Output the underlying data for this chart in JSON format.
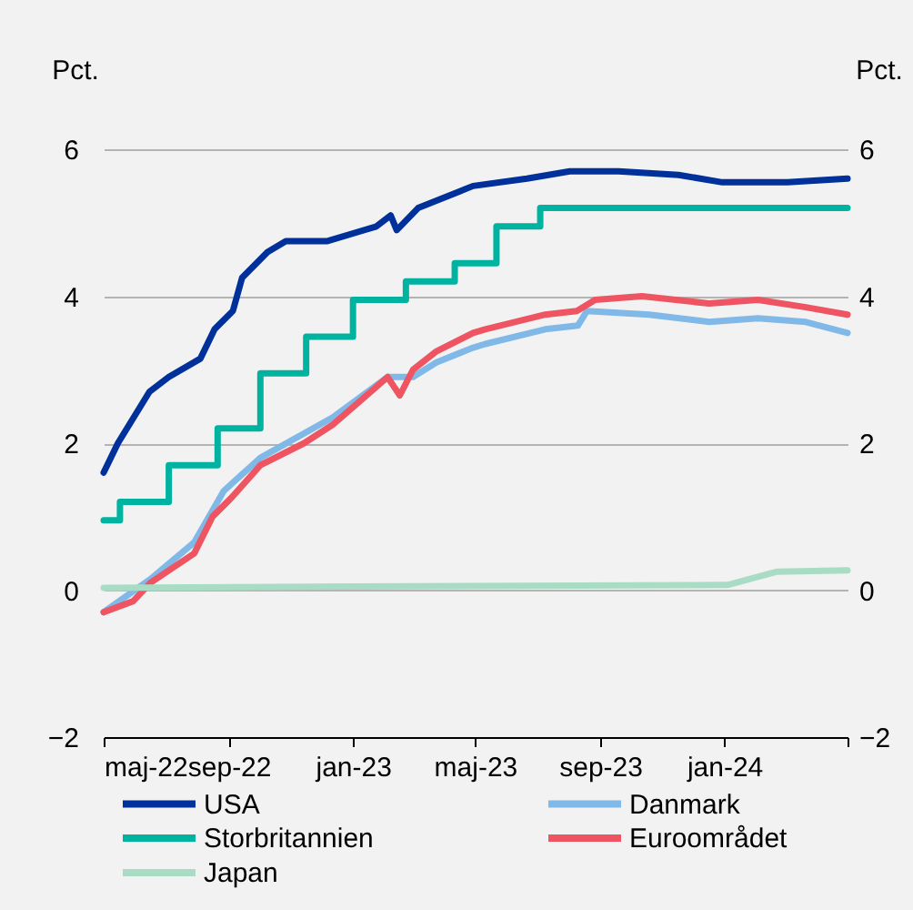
{
  "chart_data": {
    "type": "line",
    "ylabel": "Pct.",
    "y2label": "Pct.",
    "xlim": [
      "2022-05-01",
      "2024-05-01"
    ],
    "xticks": [
      {
        "value": "2022-05-01",
        "label": "maj-22"
      },
      {
        "value": "2022-09-01",
        "label": "sep-22"
      },
      {
        "value": "2023-01-01",
        "label": "jan-23"
      },
      {
        "value": "2023-05-01",
        "label": "maj-23"
      },
      {
        "value": "2023-09-01",
        "label": "sep-23"
      },
      {
        "value": "2024-01-01",
        "label": "jan-24"
      },
      {
        "value": "2024-05-01",
        "label": null
      }
    ],
    "ylim": [
      -2,
      6
    ],
    "yticks": [
      -2,
      0,
      2,
      4,
      6
    ],
    "y2lim": [
      -2,
      6
    ],
    "y2ticks": [
      -2,
      0,
      2,
      4,
      6
    ],
    "grid": "y",
    "legend": "bottom",
    "series": [
      {
        "name": "USA",
        "color": "#00309a",
        "x": [
          "2022-05-01",
          "2022-05-15",
          "2022-06-15",
          "2022-07-04",
          "2022-08-04",
          "2022-08-18",
          "2022-09-05",
          "2022-09-14",
          "2022-10-09",
          "2022-10-27",
          "2022-12-07",
          "2023-01-24",
          "2023-02-07",
          "2023-02-13",
          "2023-03-06",
          "2023-04-11",
          "2023-04-29",
          "2023-06-21",
          "2023-08-02",
          "2023-09-19",
          "2023-11-17",
          "2023-12-30",
          "2024-03-03",
          "2024-05-01"
        ],
        "values": [
          1.6,
          2.0,
          2.7,
          2.9,
          3.15,
          3.55,
          3.8,
          4.25,
          4.6,
          4.75,
          4.75,
          4.95,
          5.1,
          4.9,
          5.2,
          5.4,
          5.5,
          5.6,
          5.7,
          5.7,
          5.65,
          5.55,
          5.55,
          5.6
        ]
      },
      {
        "name": "Danmark",
        "color": "#80b8e8",
        "x": [
          "2022-05-01",
          "2022-06-16",
          "2022-07-29",
          "2022-08-27",
          "2022-10-02",
          "2022-12-12",
          "2023-02-04",
          "2023-03-01",
          "2023-03-24",
          "2023-04-29",
          "2023-05-11",
          "2023-07-09",
          "2023-08-10",
          "2023-08-19",
          "2023-10-19",
          "2023-12-17",
          "2024-02-03",
          "2024-03-21",
          "2024-05-01"
        ],
        "values": [
          -0.3,
          0.15,
          0.65,
          1.35,
          1.8,
          2.35,
          2.9,
          2.9,
          3.1,
          3.3,
          3.35,
          3.55,
          3.6,
          3.8,
          3.75,
          3.65,
          3.7,
          3.65,
          3.5
        ]
      },
      {
        "name": "Storbritannien",
        "type": "step",
        "color": "#00b3a1",
        "x": [
          "2022-05-01",
          "2022-05-17",
          "2022-07-04",
          "2022-08-21",
          "2022-10-02",
          "2022-11-16",
          "2023-01-01",
          "2023-02-22",
          "2023-04-11",
          "2023-05-22",
          "2023-07-04",
          "2024-05-01"
        ],
        "values": [
          0.95,
          1.2,
          1.7,
          2.2,
          2.95,
          3.45,
          3.95,
          4.2,
          4.45,
          4.95,
          5.2,
          5.2
        ]
      },
      {
        "name": "Euroområdet",
        "color": "#ee5461",
        "x": [
          "2022-05-01",
          "2022-05-30",
          "2022-06-16",
          "2022-07-29",
          "2022-08-16",
          "2022-09-03",
          "2022-10-02",
          "2022-11-14",
          "2022-12-12",
          "2023-02-04",
          "2023-02-16",
          "2023-03-01",
          "2023-03-24",
          "2023-04-29",
          "2023-05-11",
          "2023-07-09",
          "2023-08-09",
          "2023-08-27",
          "2023-10-12",
          "2023-12-17",
          "2024-02-03",
          "2024-03-21",
          "2024-05-01"
        ],
        "values": [
          -0.3,
          -0.15,
          0.1,
          0.5,
          1.0,
          1.25,
          1.7,
          2.0,
          2.25,
          2.9,
          2.65,
          3.0,
          3.25,
          3.5,
          3.55,
          3.75,
          3.8,
          3.95,
          4.0,
          3.9,
          3.95,
          3.85,
          3.75
        ]
      },
      {
        "name": "Japan",
        "color": "#a9dcc5",
        "x": [
          "2022-05-01",
          "2023-01-01",
          "2024-01-04",
          "2024-02-21",
          "2024-05-01"
        ],
        "values": [
          0.03,
          0.05,
          0.07,
          0.25,
          0.27
        ]
      }
    ]
  }
}
